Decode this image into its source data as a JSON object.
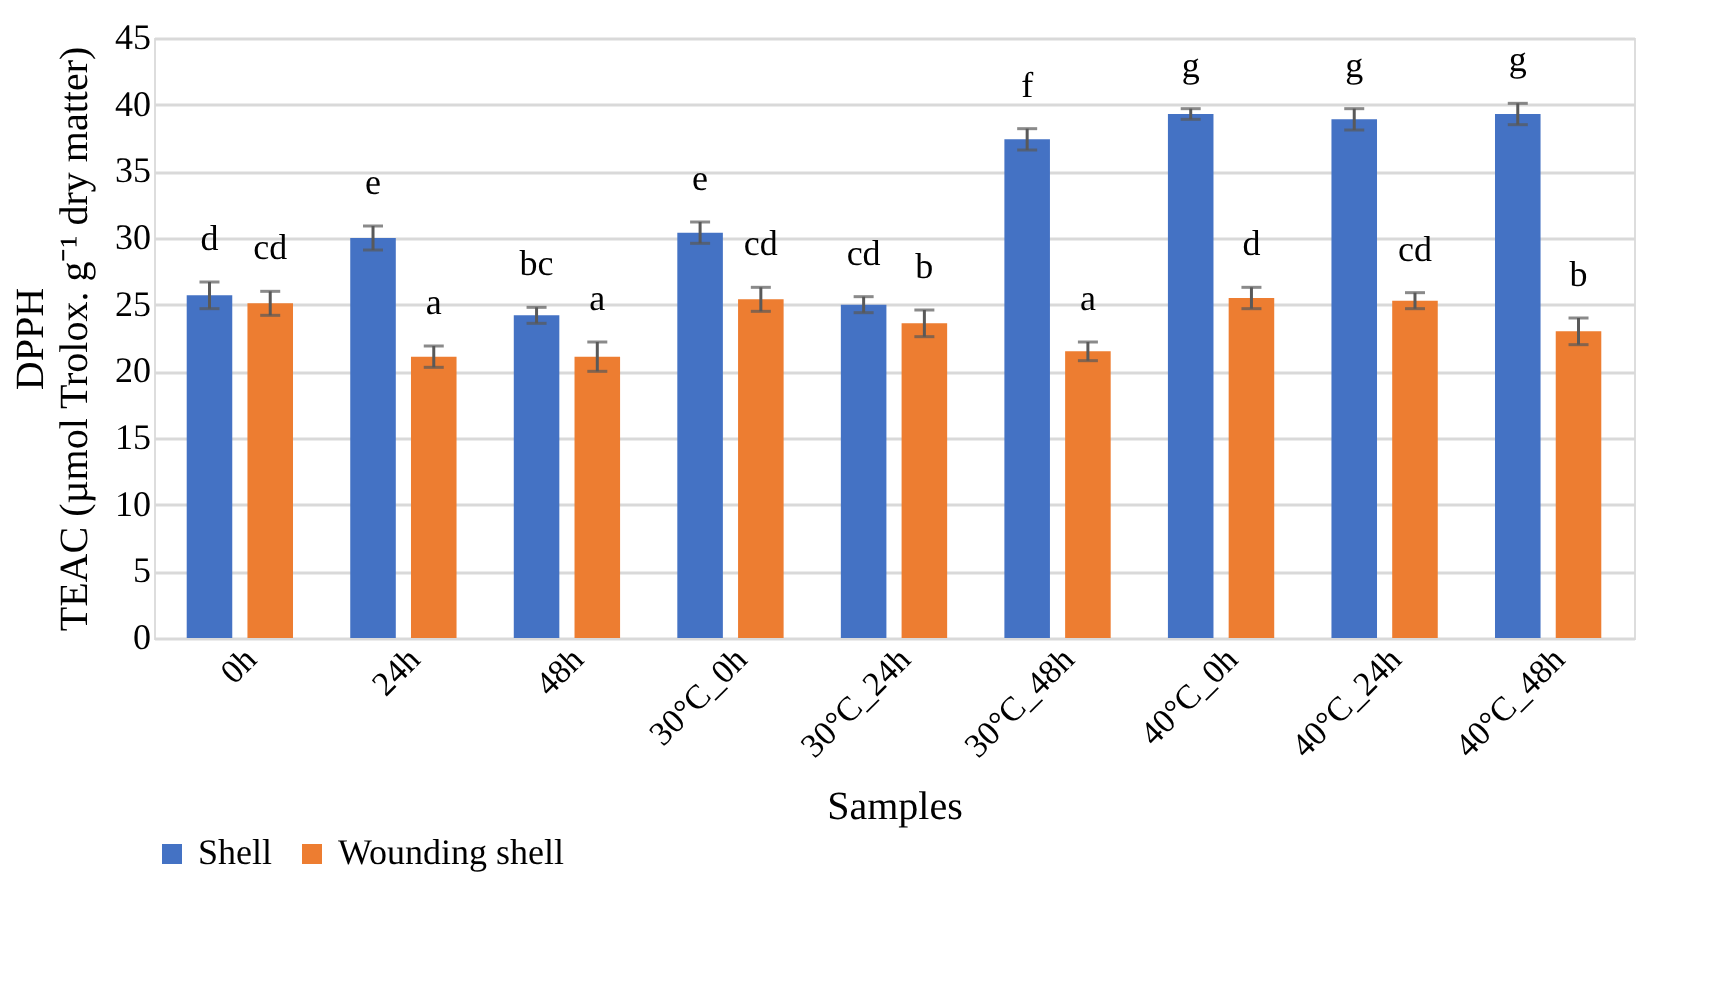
{
  "chart_data": {
    "type": "bar",
    "categories": [
      "0h",
      "24h",
      "48h",
      "30°C_0h",
      "30°C_24h",
      "30°C_48h",
      "40°C_0h",
      "40°C_24h",
      "40°C_48h"
    ],
    "series": [
      {
        "name": "Shell",
        "color": "#4472c4",
        "values": [
          25.7,
          30.0,
          24.2,
          30.4,
          25.0,
          37.4,
          39.3,
          38.9,
          39.3
        ],
        "errors": [
          1.0,
          0.9,
          0.6,
          0.8,
          0.6,
          0.8,
          0.4,
          0.8,
          0.8
        ],
        "value_labels": [
          "d",
          "e",
          "bc",
          "e",
          "cd",
          "f",
          "g",
          "g",
          "g"
        ]
      },
      {
        "name": "Wounding shell",
        "color": "#ed7d31",
        "values": [
          25.1,
          21.1,
          21.1,
          25.4,
          23.6,
          21.5,
          25.5,
          25.3,
          23.0
        ],
        "errors": [
          0.9,
          0.8,
          1.1,
          0.9,
          1.0,
          0.7,
          0.8,
          0.6,
          1.0
        ],
        "value_labels": [
          "cd",
          "a",
          "a",
          "cd",
          "b",
          "a",
          "d",
          "cd",
          "b"
        ]
      }
    ],
    "xlabel": "Samples",
    "ylabel": "DPPH\nTEAC (µmol Trolox. g⁻¹ dry matter)",
    "ylim": [
      0,
      45
    ],
    "yticks": [
      0,
      5,
      10,
      15,
      20,
      25,
      30,
      35,
      40,
      45
    ],
    "grid": "y",
    "legend": "bottom"
  }
}
